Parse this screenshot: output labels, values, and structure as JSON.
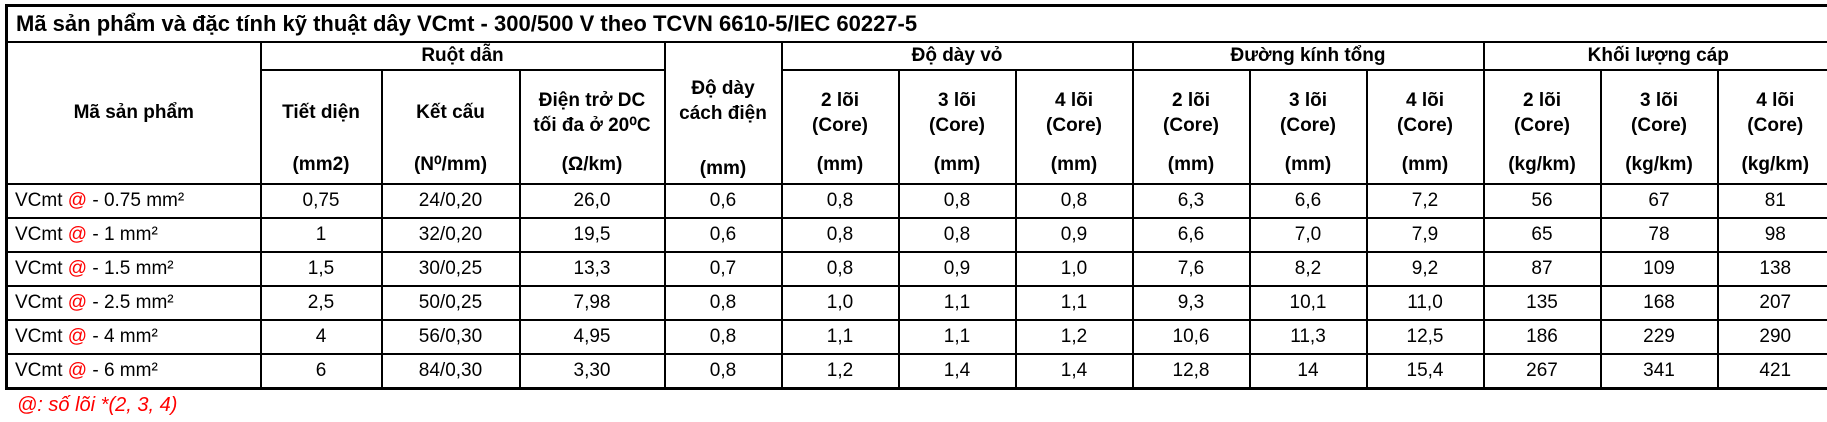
{
  "title": "Mã sản phẩm và đặc tính kỹ thuật dây VCmt - 300/500 V theo TCVN 6610-5/IEC 60227-5",
  "colors": {
    "accent_red": "#ff0000",
    "border": "#000000",
    "text": "#000000",
    "background": "#ffffff"
  },
  "header": {
    "product_col": "Mã sản phẩm",
    "groups": [
      {
        "label": "Ruột dẫn",
        "subs": [
          {
            "line1": "Tiết diện",
            "line2": "",
            "unit": "(mm2)"
          },
          {
            "line1": "Kết cấu",
            "line2": "",
            "unit": "(N⁰/mm)"
          },
          {
            "line1": "Điện trở DC",
            "line2": "tối đa ở 20⁰C",
            "unit": "(Ω/km)"
          }
        ]
      },
      {
        "label_line1": "Độ dày",
        "label_line2": "cách điện",
        "unit": "(mm)"
      },
      {
        "label": "Độ dày vỏ",
        "subs": [
          {
            "line1": "2 lõi",
            "line2": "(Core)",
            "unit": "(mm)"
          },
          {
            "line1": "3 lõi",
            "line2": "(Core)",
            "unit": "(mm)"
          },
          {
            "line1": "4 lõi",
            "line2": "(Core)",
            "unit": "(mm)"
          }
        ]
      },
      {
        "label": "Đường kính tổng",
        "subs": [
          {
            "line1": "2 lõi",
            "line2": "(Core)",
            "unit": "(mm)"
          },
          {
            "line1": "3 lõi",
            "line2": "(Core)",
            "unit": "(mm)"
          },
          {
            "line1": "4 lõi",
            "line2": "(Core)",
            "unit": "(mm)"
          }
        ]
      },
      {
        "label": "Khối lượng cáp",
        "subs": [
          {
            "line1": "2 lõi",
            "line2": "(Core)",
            "unit": "(kg/km)"
          },
          {
            "line1": "3 lõi",
            "line2": "(Core)",
            "unit": "(kg/km)"
          },
          {
            "line1": "4 lõi",
            "line2": "(Core)",
            "unit": "(kg/km)"
          }
        ]
      }
    ]
  },
  "rows": [
    {
      "code_pre": "VCmt ",
      "code_at": "@",
      "code_post": " - 0.75 mm²",
      "values": [
        "0,75",
        "24/0,20",
        "26,0",
        "0,6",
        "0,8",
        "0,8",
        "0,8",
        "6,3",
        "6,6",
        "7,2",
        "56",
        "67",
        "81"
      ]
    },
    {
      "code_pre": "VCmt ",
      "code_at": "@",
      "code_post": " - 1 mm²",
      "values": [
        "1",
        "32/0,20",
        "19,5",
        "0,6",
        "0,8",
        "0,8",
        "0,9",
        "6,6",
        "7,0",
        "7,9",
        "65",
        "78",
        "98"
      ]
    },
    {
      "code_pre": "VCmt ",
      "code_at": "@",
      "code_post": " - 1.5 mm²",
      "values": [
        "1,5",
        "30/0,25",
        "13,3",
        "0,7",
        "0,8",
        "0,9",
        "1,0",
        "7,6",
        "8,2",
        "9,2",
        "87",
        "109",
        "138"
      ]
    },
    {
      "code_pre": "VCmt ",
      "code_at": "@",
      "code_post": " - 2.5 mm²",
      "values": [
        "2,5",
        "50/0,25",
        "7,98",
        "0,8",
        "1,0",
        "1,1",
        "1,1",
        "9,3",
        "10,1",
        "11,0",
        "135",
        "168",
        "207"
      ]
    },
    {
      "code_pre": "VCmt ",
      "code_at": "@",
      "code_post": " - 4 mm²",
      "values": [
        "4",
        "56/0,30",
        "4,95",
        "0,8",
        "1,1",
        "1,1",
        "1,2",
        "10,6",
        "11,3",
        "12,5",
        "186",
        "229",
        "290"
      ]
    },
    {
      "code_pre": "VCmt ",
      "code_at": "@",
      "code_post": " - 6 mm²",
      "values": [
        "6",
        "84/0,30",
        "3,30",
        "0,8",
        "1,2",
        "1,4",
        "1,4",
        "12,8",
        "14",
        "15,4",
        "267",
        "341",
        "421"
      ]
    }
  ],
  "footnote": "@: số lõi *(2, 3, 4)"
}
